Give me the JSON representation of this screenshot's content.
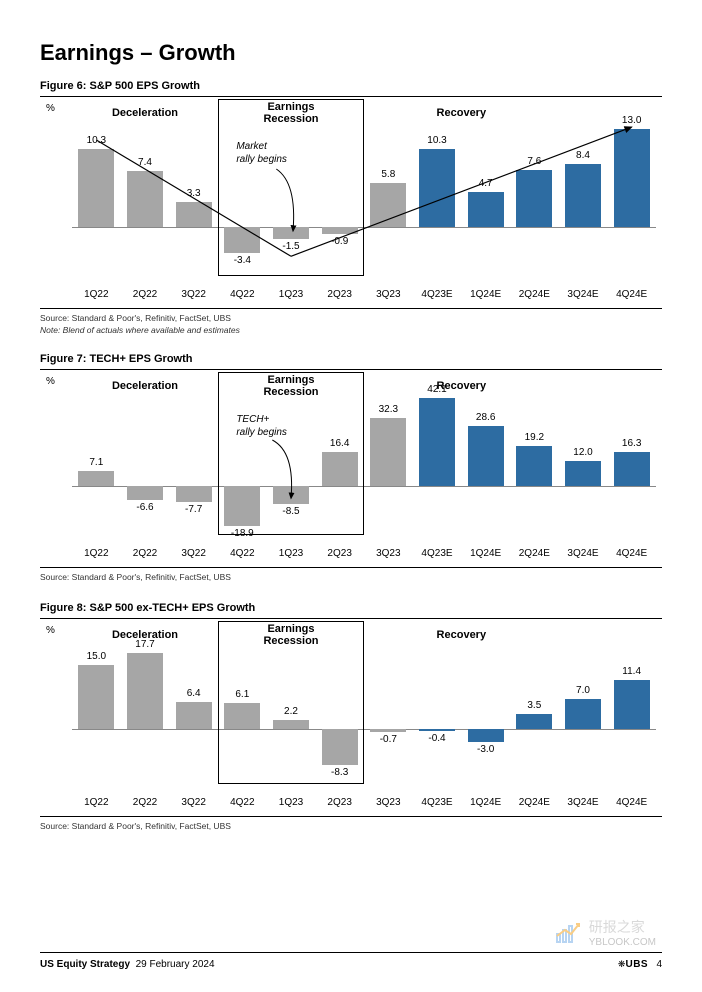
{
  "page_title": "Earnings – Growth",
  "footer": {
    "series": "US Equity Strategy",
    "date": "29 February 2024",
    "brand": "UBS",
    "page": "4"
  },
  "watermark": {
    "cn": "研报之家",
    "en": "YBLOOK.COM"
  },
  "colors": {
    "grey": "#a6a6a6",
    "blue": "#2d6ca2",
    "text": "#000000",
    "baseline": "#888888",
    "box": "#000000"
  },
  "phases": {
    "d": "Deceleration",
    "r": "Earnings\nRecession",
    "v": "Recovery"
  },
  "xlabels": [
    "1Q22",
    "2Q22",
    "3Q22",
    "4Q22",
    "1Q23",
    "2Q23",
    "3Q23",
    "4Q23E",
    "1Q24E",
    "2Q24E",
    "3Q24E",
    "4Q24E"
  ],
  "fig6": {
    "title": "Figure 6: S&P 500 EPS Growth",
    "y_unit": "%",
    "source": "Source: Standard & Poor's, Refinitiv, FactSet, UBS",
    "note": "Note: Blend of actuals where available and estimates",
    "range": [
      -6,
      14
    ],
    "values": [
      10.3,
      7.4,
      3.3,
      -3.4,
      -1.5,
      -0.9,
      5.8,
      10.3,
      4.7,
      7.6,
      8.4,
      13.0
    ],
    "bar_colors": [
      "grey",
      "grey",
      "grey",
      "grey",
      "grey",
      "grey",
      "grey",
      "blue",
      "blue",
      "blue",
      "blue",
      "blue"
    ],
    "annot": "Market\nrally begins",
    "phase_box": {
      "from": 3,
      "to": 5
    }
  },
  "fig7": {
    "title": "Figure 7: TECH+ EPS Growth",
    "y_unit": "%",
    "source": "Source: Standard & Poor's, Refinitiv, FactSet, UBS",
    "range": [
      -22,
      44
    ],
    "values": [
      7.1,
      -6.6,
      -7.7,
      -18.9,
      -8.5,
      16.4,
      32.3,
      42.1,
      28.6,
      19.2,
      12.0,
      16.3
    ],
    "bar_colors": [
      "grey",
      "grey",
      "grey",
      "grey",
      "grey",
      "grey",
      "grey",
      "blue",
      "blue",
      "blue",
      "blue",
      "blue"
    ],
    "annot": "TECH+\nrally begins",
    "phase_box": {
      "from": 3,
      "to": 5
    }
  },
  "fig8": {
    "title": "Figure 8: S&P 500 ex-TECH+ EPS Growth",
    "y_unit": "%",
    "source": "Source: Standard & Poor's, Refinitiv, FactSet, UBS",
    "range": [
      -12,
      20
    ],
    "values": [
      15.0,
      17.7,
      6.4,
      6.1,
      2.2,
      -8.3,
      -0.7,
      -0.4,
      -3.0,
      3.5,
      7.0,
      11.4
    ],
    "bar_colors": [
      "grey",
      "grey",
      "grey",
      "grey",
      "grey",
      "grey",
      "grey",
      "blue",
      "blue",
      "blue",
      "blue",
      "blue"
    ],
    "phase_box": {
      "from": 3,
      "to": 5
    }
  }
}
